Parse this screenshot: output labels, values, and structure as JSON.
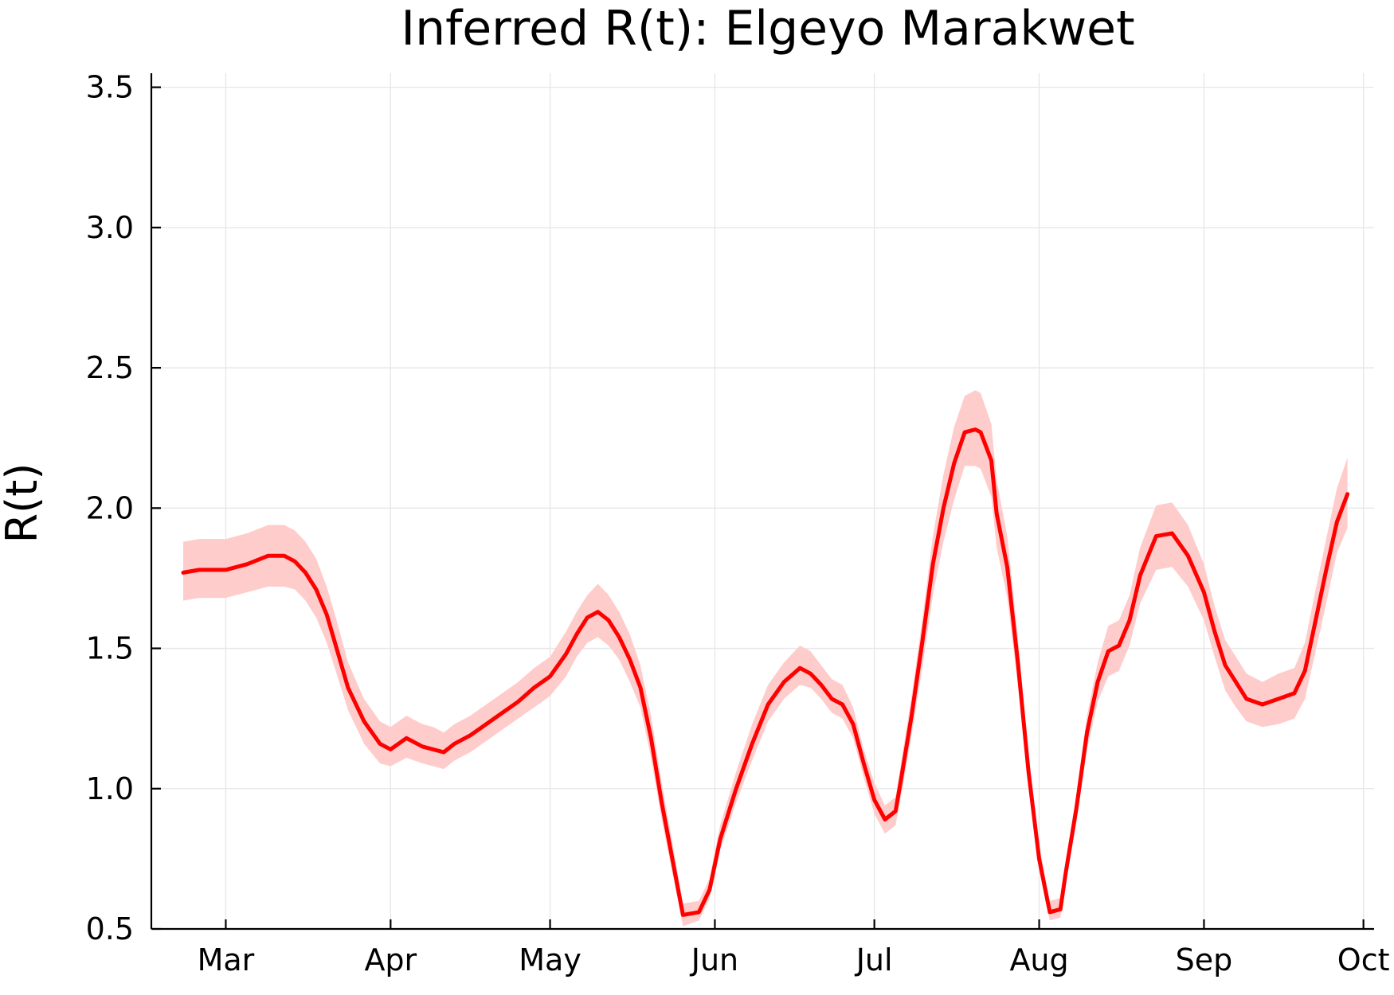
{
  "chart_data": {
    "type": "line",
    "title": "Inferred R(t): Elgeyo Marakwet",
    "xlabel": "",
    "ylabel": "R(t)",
    "xlim": [
      "2020-02-16",
      "2020-10-03"
    ],
    "ylim": [
      0.5,
      3.55
    ],
    "x_ticks": [
      {
        "date": "2020-03-01",
        "label": "Mar"
      },
      {
        "date": "2020-04-01",
        "label": "Apr"
      },
      {
        "date": "2020-05-01",
        "label": "May"
      },
      {
        "date": "2020-06-01",
        "label": "Jun"
      },
      {
        "date": "2020-07-01",
        "label": "Jul"
      },
      {
        "date": "2020-08-01",
        "label": "Aug"
      },
      {
        "date": "2020-09-01",
        "label": "Sep"
      },
      {
        "date": "2020-10-01",
        "label": "Oct"
      }
    ],
    "y_ticks": [
      {
        "value": 0.5,
        "label": "0.5"
      },
      {
        "value": 1.0,
        "label": "1.0"
      },
      {
        "value": 1.5,
        "label": "1.5"
      },
      {
        "value": 2.0,
        "label": "2.0"
      },
      {
        "value": 2.5,
        "label": "2.5"
      },
      {
        "value": 3.0,
        "label": "3.0"
      },
      {
        "value": 3.5,
        "label": "3.5"
      }
    ],
    "grid": true,
    "legend": "none",
    "line_color": "#ff0000",
    "band_color": "#ffcccc",
    "series": [
      {
        "x": [
          "2020-02-22",
          "2020-02-25",
          "2020-03-01",
          "2020-03-05",
          "2020-03-09",
          "2020-03-12",
          "2020-03-14",
          "2020-03-16",
          "2020-03-18",
          "2020-03-20",
          "2020-03-22",
          "2020-03-24",
          "2020-03-27",
          "2020-03-30",
          "2020-04-01",
          "2020-04-04",
          "2020-04-07",
          "2020-04-09",
          "2020-04-11",
          "2020-04-13",
          "2020-04-16",
          "2020-04-19",
          "2020-04-22",
          "2020-04-25",
          "2020-04-28",
          "2020-05-01",
          "2020-05-04",
          "2020-05-06",
          "2020-05-08",
          "2020-05-10",
          "2020-05-12",
          "2020-05-14",
          "2020-05-16",
          "2020-05-18",
          "2020-05-20",
          "2020-05-22",
          "2020-05-24",
          "2020-05-26",
          "2020-05-29",
          "2020-05-31",
          "2020-06-02",
          "2020-06-05",
          "2020-06-08",
          "2020-06-11",
          "2020-06-14",
          "2020-06-17",
          "2020-06-19",
          "2020-06-21",
          "2020-06-23",
          "2020-06-25",
          "2020-06-27",
          "2020-06-29",
          "2020-07-01",
          "2020-07-03",
          "2020-07-05",
          "2020-07-06",
          "2020-07-08",
          "2020-07-10",
          "2020-07-12",
          "2020-07-14",
          "2020-07-16",
          "2020-07-18",
          "2020-07-20",
          "2020-07-21",
          "2020-07-23",
          "2020-07-24",
          "2020-07-26",
          "2020-07-28",
          "2020-07-30",
          "2020-08-01",
          "2020-08-03",
          "2020-08-05",
          "2020-08-06",
          "2020-08-08",
          "2020-08-10",
          "2020-08-12",
          "2020-08-14",
          "2020-08-16",
          "2020-08-18",
          "2020-08-20",
          "2020-08-23",
          "2020-08-26",
          "2020-08-29",
          "2020-09-01",
          "2020-09-03",
          "2020-09-05",
          "2020-09-07",
          "2020-09-09",
          "2020-09-12",
          "2020-09-15",
          "2020-09-18",
          "2020-09-20",
          "2020-09-22",
          "2020-09-24",
          "2020-09-26",
          "2020-09-28"
        ],
        "y": [
          1.77,
          1.78,
          1.78,
          1.8,
          1.83,
          1.83,
          1.81,
          1.77,
          1.71,
          1.62,
          1.49,
          1.36,
          1.24,
          1.16,
          1.14,
          1.18,
          1.15,
          1.14,
          1.13,
          1.16,
          1.19,
          1.23,
          1.27,
          1.31,
          1.36,
          1.4,
          1.48,
          1.55,
          1.61,
          1.63,
          1.6,
          1.54,
          1.46,
          1.36,
          1.18,
          0.95,
          0.75,
          0.55,
          0.56,
          0.64,
          0.82,
          1.0,
          1.16,
          1.3,
          1.38,
          1.43,
          1.41,
          1.37,
          1.32,
          1.3,
          1.23,
          1.09,
          0.96,
          0.89,
          0.92,
          1.03,
          1.26,
          1.52,
          1.8,
          2.0,
          2.16,
          2.27,
          2.28,
          2.27,
          2.17,
          1.98,
          1.79,
          1.45,
          1.06,
          0.75,
          0.56,
          0.57,
          0.7,
          0.93,
          1.2,
          1.38,
          1.49,
          1.51,
          1.6,
          1.76,
          1.9,
          1.91,
          1.83,
          1.7,
          1.56,
          1.44,
          1.38,
          1.32,
          1.3,
          1.32,
          1.34,
          1.42,
          1.6,
          1.78,
          1.95,
          2.05
        ],
        "lower": [
          1.67,
          1.68,
          1.68,
          1.7,
          1.72,
          1.72,
          1.71,
          1.67,
          1.61,
          1.52,
          1.4,
          1.28,
          1.16,
          1.09,
          1.08,
          1.11,
          1.09,
          1.08,
          1.07,
          1.1,
          1.13,
          1.17,
          1.21,
          1.25,
          1.29,
          1.33,
          1.4,
          1.47,
          1.52,
          1.54,
          1.51,
          1.46,
          1.38,
          1.29,
          1.11,
          0.89,
          0.7,
          0.51,
          0.53,
          0.61,
          0.78,
          0.95,
          1.1,
          1.24,
          1.32,
          1.37,
          1.36,
          1.32,
          1.27,
          1.25,
          1.18,
          1.04,
          0.91,
          0.84,
          0.87,
          0.97,
          1.19,
          1.43,
          1.69,
          1.88,
          2.03,
          2.15,
          2.15,
          2.14,
          2.04,
          1.86,
          1.68,
          1.37,
          1.0,
          0.71,
          0.53,
          0.54,
          0.66,
          0.88,
          1.14,
          1.31,
          1.4,
          1.42,
          1.51,
          1.66,
          1.78,
          1.79,
          1.72,
          1.6,
          1.47,
          1.35,
          1.29,
          1.24,
          1.22,
          1.23,
          1.25,
          1.32,
          1.49,
          1.66,
          1.84,
          1.93
        ],
        "upper": [
          1.88,
          1.89,
          1.89,
          1.91,
          1.94,
          1.94,
          1.92,
          1.88,
          1.82,
          1.72,
          1.59,
          1.45,
          1.32,
          1.24,
          1.22,
          1.26,
          1.23,
          1.22,
          1.2,
          1.23,
          1.26,
          1.3,
          1.34,
          1.38,
          1.43,
          1.47,
          1.56,
          1.63,
          1.69,
          1.73,
          1.69,
          1.63,
          1.55,
          1.44,
          1.26,
          1.02,
          0.81,
          0.59,
          0.6,
          0.68,
          0.87,
          1.06,
          1.23,
          1.37,
          1.45,
          1.51,
          1.49,
          1.44,
          1.39,
          1.37,
          1.29,
          1.14,
          1.02,
          0.94,
          0.97,
          1.09,
          1.33,
          1.6,
          1.9,
          2.12,
          2.29,
          2.4,
          2.42,
          2.41,
          2.3,
          2.1,
          1.9,
          1.54,
          1.12,
          0.8,
          0.6,
          0.61,
          0.74,
          0.98,
          1.26,
          1.45,
          1.58,
          1.6,
          1.69,
          1.86,
          2.01,
          2.02,
          1.94,
          1.8,
          1.65,
          1.53,
          1.47,
          1.41,
          1.38,
          1.41,
          1.43,
          1.52,
          1.71,
          1.89,
          2.07,
          2.18
        ]
      }
    ]
  }
}
